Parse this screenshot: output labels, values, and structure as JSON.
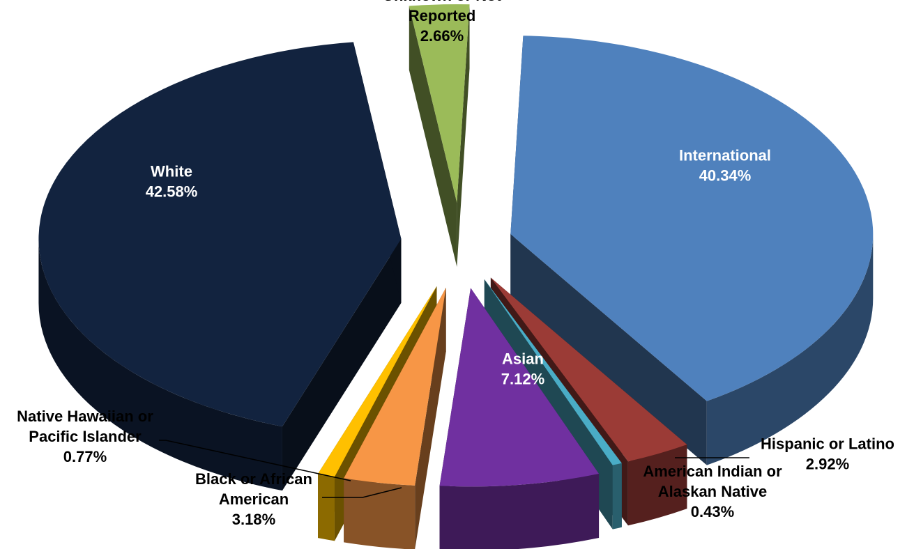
{
  "chart_data": {
    "type": "pie",
    "style": "3d-exploded",
    "legend": "none",
    "slices": [
      {
        "label_lines": [
          "International"
        ],
        "value_label": "40.34%",
        "value": 40.34,
        "color": "#4f81bd"
      },
      {
        "label_lines": [
          "Hispanic or Latino"
        ],
        "value_label": "2.92%",
        "value": 2.92,
        "color": "#9b3b36"
      },
      {
        "label_lines": [
          "American Indian or",
          "Alaskan Native"
        ],
        "value_label": "0.43%",
        "value": 0.43,
        "color": "#4aacc6"
      },
      {
        "label_lines": [
          "Asian"
        ],
        "value_label": "7.12%",
        "value": 7.12,
        "color": "#7030a0"
      },
      {
        "label_lines": [
          "Black or African",
          "American"
        ],
        "value_label": "3.18%",
        "value": 3.18,
        "color": "#f79646"
      },
      {
        "label_lines": [
          "Native Hawaiian or",
          "Pacific Islander"
        ],
        "value_label": "0.77%",
        "value": 0.77,
        "color": "#ffc000"
      },
      {
        "label_lines": [
          "White"
        ],
        "value_label": "42.58%",
        "value": 42.58,
        "color": "#12233f"
      },
      {
        "label_lines": [
          "Unknown or Not",
          "Reported"
        ],
        "value_label": "2.66%",
        "value": 2.66,
        "color": "#9bbb59"
      }
    ]
  }
}
